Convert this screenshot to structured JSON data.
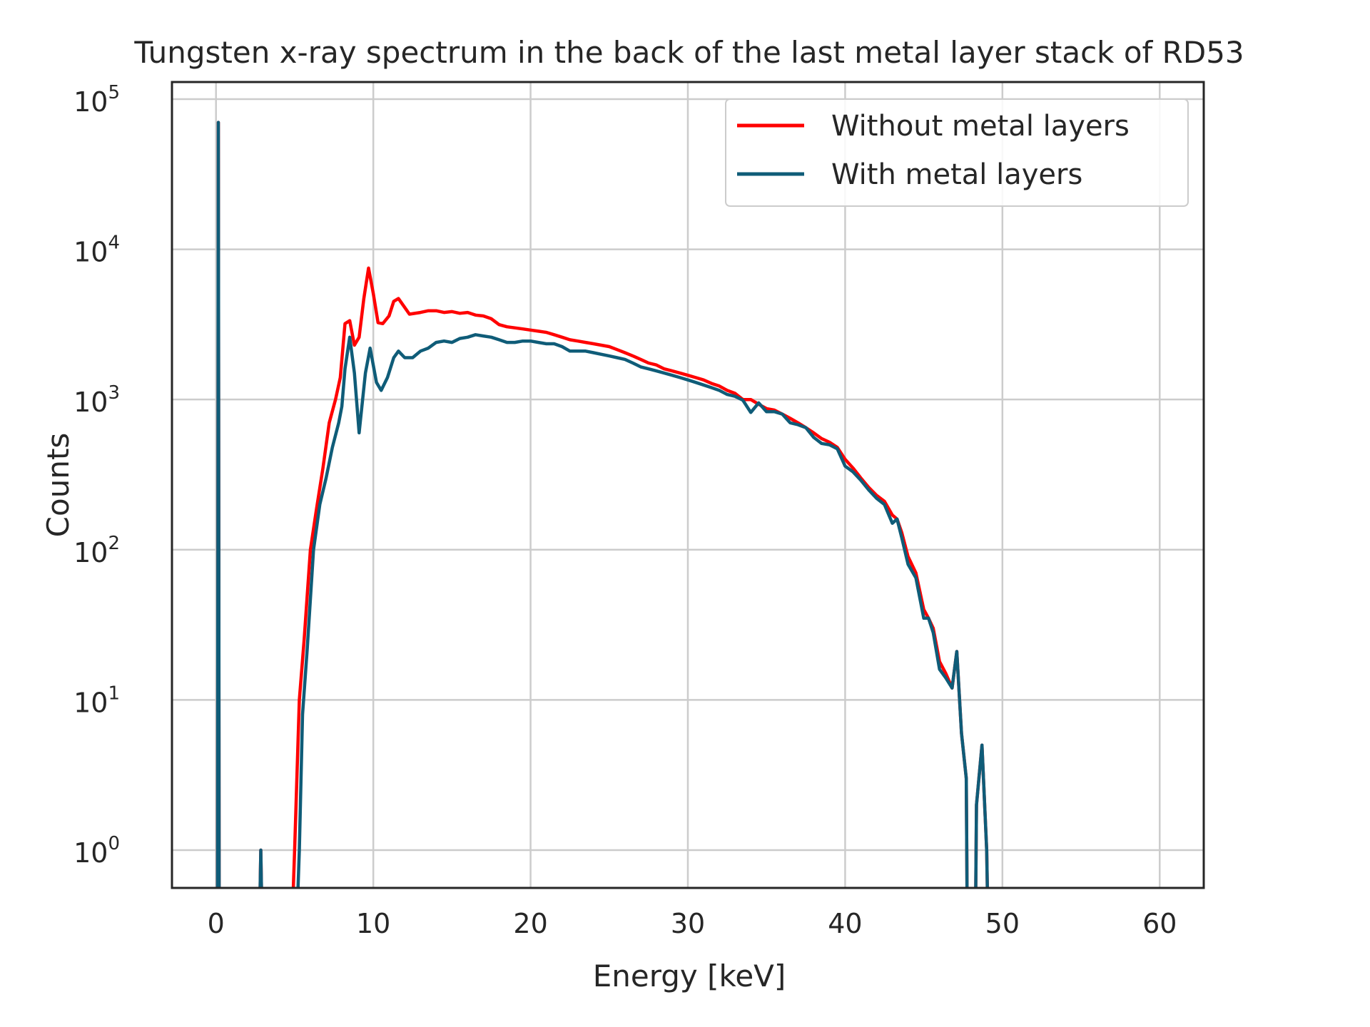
{
  "chart_data": {
    "type": "line",
    "title": "Tungsten x-ray spectrum in the back of the last metal layer stack of RD53",
    "xlabel": "Energy [keV]",
    "ylabel": "Counts",
    "xlim": [
      -2.8,
      62.8
    ],
    "ylim": [
      0.56,
      130000
    ],
    "yscale": "log",
    "grid": true,
    "legend_position": "top-right",
    "x_ticks": [
      0,
      10,
      20,
      30,
      40,
      50,
      60
    ],
    "y_ticks": [
      {
        "value": 1,
        "base": "10",
        "exp": "0"
      },
      {
        "value": 10,
        "base": "10",
        "exp": "1"
      },
      {
        "value": 100,
        "base": "10",
        "exp": "2"
      },
      {
        "value": 1000,
        "base": "10",
        "exp": "3"
      },
      {
        "value": 10000,
        "base": "10",
        "exp": "4"
      },
      {
        "value": 100000,
        "base": "10",
        "exp": "5"
      }
    ],
    "series": [
      {
        "name": "Without metal layers",
        "color": "#ff0000",
        "points": [
          [
            0.1,
            0.5
          ],
          [
            0.15,
            70000
          ],
          [
            0.2,
            0.5
          ],
          [
            2.8,
            0.5
          ],
          [
            2.85,
            1
          ],
          [
            2.9,
            0.5
          ],
          [
            4.9,
            0.5
          ],
          [
            5.0,
            1
          ],
          [
            5.3,
            10
          ],
          [
            5.6,
            25
          ],
          [
            6.0,
            100
          ],
          [
            6.4,
            190
          ],
          [
            6.8,
            350
          ],
          [
            7.2,
            700
          ],
          [
            7.6,
            1000
          ],
          [
            7.9,
            1400
          ],
          [
            8.2,
            3200
          ],
          [
            8.5,
            3350
          ],
          [
            8.8,
            2300
          ],
          [
            9.1,
            2600
          ],
          [
            9.4,
            4700
          ],
          [
            9.7,
            7500
          ],
          [
            10.0,
            5100
          ],
          [
            10.3,
            3250
          ],
          [
            10.6,
            3200
          ],
          [
            11.0,
            3600
          ],
          [
            11.3,
            4500
          ],
          [
            11.6,
            4700
          ],
          [
            12.0,
            4100
          ],
          [
            12.3,
            3700
          ],
          [
            13.0,
            3800
          ],
          [
            13.5,
            3900
          ],
          [
            14.0,
            3900
          ],
          [
            14.5,
            3800
          ],
          [
            15.0,
            3850
          ],
          [
            15.5,
            3750
          ],
          [
            16.0,
            3800
          ],
          [
            16.5,
            3650
          ],
          [
            17.0,
            3600
          ],
          [
            17.5,
            3450
          ],
          [
            18.0,
            3150
          ],
          [
            18.5,
            3050
          ],
          [
            19.0,
            3000
          ],
          [
            19.5,
            2950
          ],
          [
            20.0,
            2900
          ],
          [
            20.5,
            2850
          ],
          [
            21.0,
            2800
          ],
          [
            21.5,
            2700
          ],
          [
            22.0,
            2600
          ],
          [
            22.5,
            2500
          ],
          [
            23.0,
            2450
          ],
          [
            23.5,
            2400
          ],
          [
            24.0,
            2350
          ],
          [
            24.5,
            2300
          ],
          [
            25.0,
            2250
          ],
          [
            25.5,
            2150
          ],
          [
            26.0,
            2050
          ],
          [
            26.5,
            1950
          ],
          [
            27.0,
            1850
          ],
          [
            27.5,
            1750
          ],
          [
            28.0,
            1700
          ],
          [
            28.5,
            1600
          ],
          [
            29.0,
            1550
          ],
          [
            29.5,
            1500
          ],
          [
            30.0,
            1450
          ],
          [
            30.5,
            1400
          ],
          [
            31.0,
            1350
          ],
          [
            31.5,
            1280
          ],
          [
            32.0,
            1230
          ],
          [
            32.5,
            1150
          ],
          [
            33.0,
            1100
          ],
          [
            33.5,
            1000
          ],
          [
            34.0,
            1000
          ],
          [
            34.5,
            930
          ],
          [
            35.0,
            870
          ],
          [
            35.5,
            850
          ],
          [
            36.0,
            800
          ],
          [
            36.5,
            750
          ],
          [
            37.0,
            700
          ],
          [
            37.5,
            650
          ],
          [
            38.0,
            600
          ],
          [
            38.5,
            550
          ],
          [
            39.0,
            520
          ],
          [
            39.5,
            480
          ],
          [
            40.0,
            400
          ],
          [
            40.5,
            350
          ],
          [
            41.0,
            300
          ],
          [
            41.5,
            260
          ],
          [
            42.0,
            230
          ],
          [
            42.5,
            210
          ],
          [
            43.0,
            170
          ],
          [
            43.3,
            160
          ],
          [
            43.6,
            130
          ],
          [
            44.0,
            90
          ],
          [
            44.5,
            70
          ],
          [
            45.0,
            40
          ],
          [
            45.3,
            35
          ],
          [
            45.6,
            30
          ],
          [
            46.0,
            18
          ],
          [
            46.4,
            15
          ],
          [
            46.8,
            12
          ],
          [
            47.1,
            21
          ],
          [
            47.4,
            6
          ],
          [
            47.7,
            3
          ],
          [
            47.75,
            0.5
          ],
          [
            48.3,
            0.5
          ],
          [
            48.35,
            2
          ],
          [
            48.7,
            5
          ],
          [
            49.0,
            1
          ],
          [
            49.05,
            0.5
          ]
        ]
      },
      {
        "name": "With metal layers",
        "color": "#0f5c78",
        "points": [
          [
            0.1,
            0.5
          ],
          [
            0.15,
            70000
          ],
          [
            0.2,
            0.5
          ],
          [
            2.8,
            0.5
          ],
          [
            2.85,
            1
          ],
          [
            2.9,
            0.5
          ],
          [
            5.2,
            0.5
          ],
          [
            5.3,
            1
          ],
          [
            5.5,
            8
          ],
          [
            5.8,
            22
          ],
          [
            6.2,
            100
          ],
          [
            6.6,
            200
          ],
          [
            7.0,
            300
          ],
          [
            7.4,
            480
          ],
          [
            7.8,
            700
          ],
          [
            8.0,
            900
          ],
          [
            8.2,
            1600
          ],
          [
            8.5,
            2600
          ],
          [
            8.8,
            1500
          ],
          [
            9.1,
            600
          ],
          [
            9.5,
            1500
          ],
          [
            9.8,
            2200
          ],
          [
            10.2,
            1300
          ],
          [
            10.5,
            1150
          ],
          [
            10.9,
            1400
          ],
          [
            11.3,
            1900
          ],
          [
            11.6,
            2100
          ],
          [
            12.0,
            1900
          ],
          [
            12.5,
            1900
          ],
          [
            13.0,
            2100
          ],
          [
            13.5,
            2200
          ],
          [
            14.0,
            2400
          ],
          [
            14.5,
            2450
          ],
          [
            15.0,
            2400
          ],
          [
            15.5,
            2550
          ],
          [
            16.0,
            2600
          ],
          [
            16.5,
            2700
          ],
          [
            17.0,
            2650
          ],
          [
            17.5,
            2600
          ],
          [
            18.0,
            2500
          ],
          [
            18.5,
            2400
          ],
          [
            19.0,
            2400
          ],
          [
            19.5,
            2450
          ],
          [
            20.0,
            2450
          ],
          [
            20.5,
            2400
          ],
          [
            21.0,
            2350
          ],
          [
            21.5,
            2350
          ],
          [
            22.0,
            2250
          ],
          [
            22.5,
            2100
          ],
          [
            23.0,
            2100
          ],
          [
            23.5,
            2100
          ],
          [
            24.0,
            2050
          ],
          [
            24.5,
            2000
          ],
          [
            25.0,
            1950
          ],
          [
            25.5,
            1900
          ],
          [
            26.0,
            1850
          ],
          [
            26.5,
            1750
          ],
          [
            27.0,
            1650
          ],
          [
            27.5,
            1600
          ],
          [
            28.0,
            1550
          ],
          [
            28.5,
            1500
          ],
          [
            29.0,
            1450
          ],
          [
            29.5,
            1400
          ],
          [
            30.0,
            1350
          ],
          [
            30.5,
            1300
          ],
          [
            31.0,
            1250
          ],
          [
            31.5,
            1200
          ],
          [
            32.0,
            1150
          ],
          [
            32.5,
            1080
          ],
          [
            33.0,
            1050
          ],
          [
            33.5,
            990
          ],
          [
            34.0,
            820
          ],
          [
            34.5,
            950
          ],
          [
            35.0,
            830
          ],
          [
            35.5,
            830
          ],
          [
            36.0,
            800
          ],
          [
            36.5,
            700
          ],
          [
            37.0,
            680
          ],
          [
            37.5,
            650
          ],
          [
            38.0,
            560
          ],
          [
            38.5,
            510
          ],
          [
            39.0,
            500
          ],
          [
            39.5,
            470
          ],
          [
            40.0,
            360
          ],
          [
            40.5,
            330
          ],
          [
            41.0,
            290
          ],
          [
            41.5,
            250
          ],
          [
            42.0,
            220
          ],
          [
            42.5,
            200
          ],
          [
            43.0,
            150
          ],
          [
            43.3,
            160
          ],
          [
            43.6,
            120
          ],
          [
            44.0,
            80
          ],
          [
            44.5,
            65
          ],
          [
            45.0,
            35
          ],
          [
            45.3,
            35
          ],
          [
            45.6,
            28
          ],
          [
            46.0,
            16
          ],
          [
            46.4,
            14
          ],
          [
            46.8,
            12
          ],
          [
            47.1,
            21
          ],
          [
            47.4,
            6
          ],
          [
            47.7,
            3
          ],
          [
            47.75,
            0.5
          ],
          [
            48.3,
            0.5
          ],
          [
            48.35,
            2
          ],
          [
            48.7,
            5
          ],
          [
            49.0,
            1
          ],
          [
            49.05,
            0.5
          ]
        ]
      }
    ]
  }
}
